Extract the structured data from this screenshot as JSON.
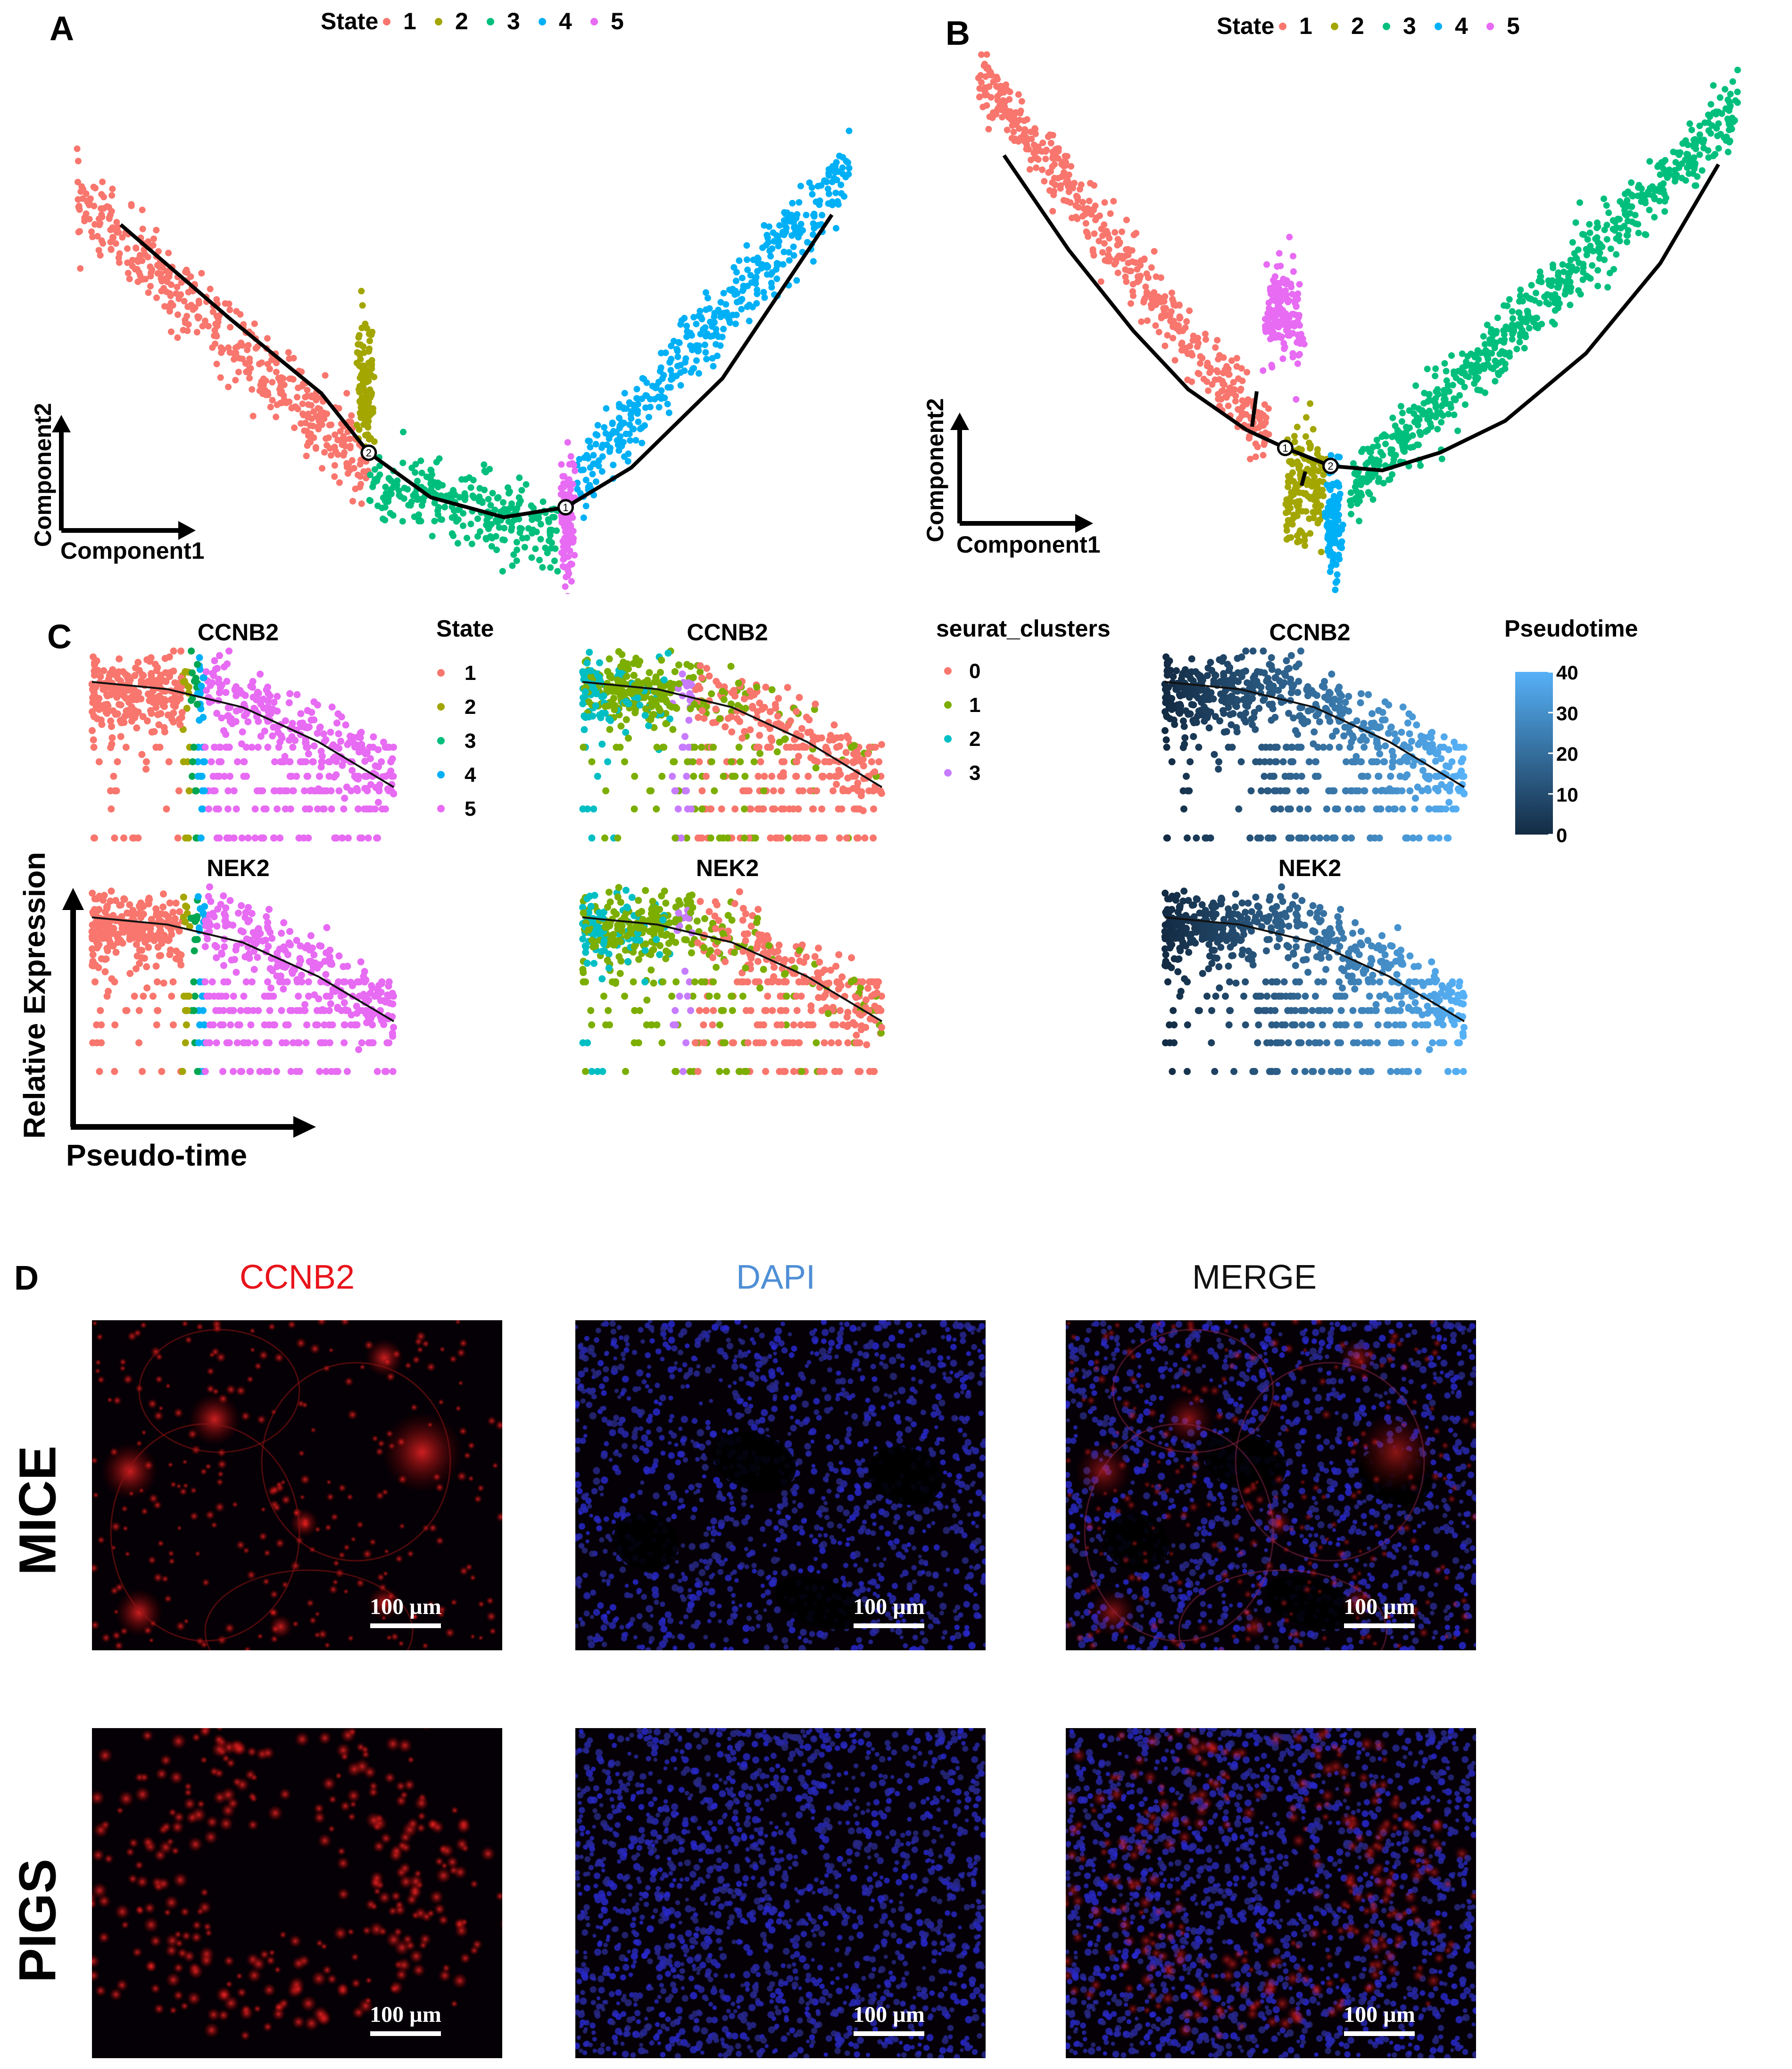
{
  "figure": {
    "panel_labels": [
      "A",
      "B",
      "C",
      "D"
    ]
  },
  "colors": {
    "state": [
      "#F8766D",
      "#A3A500",
      "#00BF7D",
      "#00B0F6",
      "#E76BF3"
    ],
    "cluster": [
      "#F8766D",
      "#7CAE00",
      "#00BFC4",
      "#C77CFF"
    ],
    "pseudotime_low": "#132B43",
    "pseudotime_high": "#56B1F7"
  },
  "chart_data": [
    {
      "id": "A",
      "type": "scatter",
      "title": "",
      "xlabel": "Component1",
      "ylabel": "Component2",
      "legend": {
        "title": "State",
        "entries": [
          "1",
          "2",
          "3",
          "4",
          "5"
        ],
        "position": "top"
      },
      "trajectory": [
        [
          -9,
          4.3
        ],
        [
          -6,
          2.4
        ],
        [
          -3.5,
          0.9
        ],
        [
          -2.2,
          -0.3
        ],
        [
          -0.5,
          -1.2
        ],
        [
          1.5,
          -1.6
        ],
        [
          3.2,
          -1.4
        ],
        [
          5,
          -0.6
        ],
        [
          7.5,
          1.2
        ],
        [
          10.5,
          4.5
        ]
      ],
      "branch_points": [
        {
          "label": "2",
          "x": -2.2,
          "y": -0.3
        },
        {
          "label": "1",
          "x": 3.2,
          "y": -1.4
        }
      ],
      "series": [
        {
          "name": "1",
          "x_range": [
            -10.2,
            -2.2
          ],
          "y_center": [
            4.8,
            -0.6
          ]
        },
        {
          "name": "2",
          "x_range": [
            -2.5,
            -2.1
          ],
          "y_center": [
            1.0,
            1.0
          ]
        },
        {
          "name": "3",
          "x_range": [
            -2.2,
            3.0
          ],
          "y_center": [
            -0.9,
            -1.9
          ]
        },
        {
          "name": "4",
          "x_range": [
            3.5,
            11.0
          ],
          "y_center": [
            -0.9,
            5.4
          ]
        },
        {
          "name": "5",
          "x_range": [
            3.1,
            3.4
          ],
          "y_center": [
            -1.6,
            -1.6
          ]
        }
      ]
    },
    {
      "id": "B",
      "type": "scatter",
      "title": "",
      "xlabel": "Component1",
      "ylabel": "Component2",
      "legend": {
        "title": "State",
        "entries": [
          "1",
          "2",
          "3",
          "4",
          "5"
        ],
        "position": "top"
      },
      "trajectory": [
        [
          -8.5,
          6.7
        ],
        [
          -6.5,
          4.6
        ],
        [
          -4.5,
          2.8
        ],
        [
          -2.8,
          1.5
        ],
        [
          -1,
          0.6
        ],
        [
          0.2,
          0.2
        ],
        [
          1.6,
          -0.2
        ],
        [
          3.2,
          -0.3
        ],
        [
          5,
          0.1
        ],
        [
          7,
          0.8
        ],
        [
          9.5,
          2.3
        ],
        [
          11.8,
          4.3
        ],
        [
          13.6,
          6.5
        ]
      ],
      "branch_points": [
        {
          "label": "1",
          "x": 0.2,
          "y": 0.2
        },
        {
          "label": "2",
          "x": 1.6,
          "y": -0.2
        }
      ],
      "series": [
        {
          "name": "1",
          "x_range": [
            -9.3,
            -0.3
          ],
          "y_center": [
            8.5,
            0.3
          ]
        },
        {
          "name": "2",
          "x_range": [
            0.2,
            1.4
          ],
          "y_center": [
            -0.6,
            -0.6
          ]
        },
        {
          "name": "3",
          "x_range": [
            2.2,
            14.2
          ],
          "y_center": [
            -0.8,
            7.8
          ]
        },
        {
          "name": "4",
          "x_range": [
            1.5,
            1.9
          ],
          "y_center": [
            -1.5,
            -1.5
          ]
        },
        {
          "name": "5",
          "x_range": [
            -0.4,
            0.7
          ],
          "y_center": [
            3.2,
            3.2
          ]
        }
      ]
    },
    {
      "id": "C",
      "type": "scatter",
      "title": "",
      "xlabel": "Pseudo-time",
      "ylabel": "Relative Expression",
      "genes": [
        "CCNB2",
        "NEK2"
      ],
      "color_by": [
        {
          "title": "State",
          "kind": "categorical",
          "entries": [
            "1",
            "2",
            "3",
            "4",
            "5"
          ],
          "pseudotime_bounds": [
            0,
            12,
            13,
            14,
            15,
            40
          ]
        },
        {
          "title": "seurat_clusters",
          "kind": "categorical",
          "entries": [
            "0",
            "1",
            "2",
            "3"
          ]
        },
        {
          "title": "Pseudotime",
          "kind": "continuous",
          "ticks": [
            "0",
            "10",
            "20",
            "30",
            "40"
          ],
          "range": [
            0,
            40
          ]
        }
      ],
      "x_range": [
        0,
        40
      ],
      "trend": [
        {
          "x": 0,
          "y": 0.88
        },
        {
          "x": 10,
          "y": 0.84
        },
        {
          "x": 20,
          "y": 0.74
        },
        {
          "x": 30,
          "y": 0.55
        },
        {
          "x": 40,
          "y": 0.3
        }
      ]
    }
  ],
  "panel_d": {
    "columns": [
      "CCNB2",
      "DAPI",
      "MERGE"
    ],
    "rows": [
      "MICE",
      "PIGS"
    ],
    "scale_bar": "100 µm"
  }
}
